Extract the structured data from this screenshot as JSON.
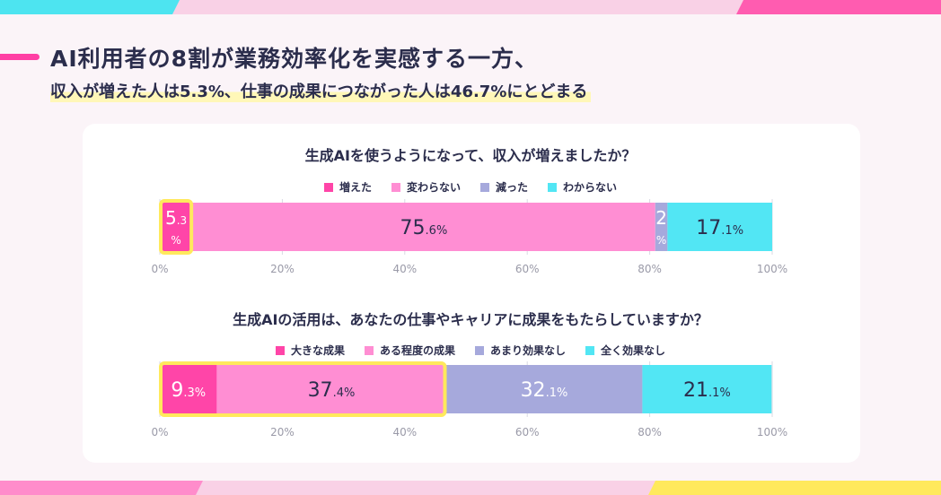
{
  "heading": {
    "line1": "AI利用者の8割が業務効率化を実感する一方、",
    "line2": "収入が増えた人は5.3%、仕事の成果につながった人は46.7%にとどまる"
  },
  "decor_colors": {
    "top": [
      "#4de4f0",
      "#f9d1e6",
      "#f9d1e6",
      "#ff5cb0"
    ],
    "bottom": [
      "#ff8ccb",
      "#f9d1e6",
      "#ffe95c"
    ]
  },
  "chart_data": [
    {
      "type": "bar",
      "orientation": "horizontal-stacked",
      "title": "生成AIを使うようになって、収入が増えましたか？",
      "categories": [
        "増えた",
        "変わらない",
        "減った",
        "わからない"
      ],
      "values": [
        5.3,
        75.6,
        2.0,
        17.1
      ],
      "value_labels": [
        {
          "main": "5",
          "decimal": ".3",
          "pct": "%"
        },
        {
          "main": "75",
          "decimal": ".6",
          "pct": "%"
        },
        {
          "main": "2",
          "decimal": "",
          "pct": "%"
        },
        {
          "main": "17",
          "decimal": ".1",
          "pct": "%"
        }
      ],
      "colors": [
        "#ff45a8",
        "#ff8ed3",
        "#a6a9dc",
        "#52e6f4"
      ],
      "highlight": [
        0
      ],
      "xlim": [
        0,
        100
      ],
      "xticks": [
        "0%",
        "20%",
        "40%",
        "60%",
        "80%",
        "100%"
      ],
      "grid": true
    },
    {
      "type": "bar",
      "orientation": "horizontal-stacked",
      "title": "生成AIの活用は、あなたの仕事やキャリアに成果をもたらしていますか？",
      "categories": [
        "大きな成果",
        "ある程度の成果",
        "あまり効果なし",
        "全く効果なし"
      ],
      "values": [
        9.3,
        37.4,
        32.1,
        21.1
      ],
      "value_labels": [
        {
          "main": "9",
          "decimal": ".3",
          "pct": "%"
        },
        {
          "main": "37",
          "decimal": ".4",
          "pct": "%"
        },
        {
          "main": "32",
          "decimal": ".1",
          "pct": "%"
        },
        {
          "main": "21",
          "decimal": ".1",
          "pct": "%"
        }
      ],
      "colors": [
        "#ff45a8",
        "#ff8ed3",
        "#a6a9dc",
        "#52e6f4"
      ],
      "highlight": [
        0,
        1
      ],
      "highlight_color": "#ffe95c",
      "xlim": [
        0,
        100
      ],
      "xticks": [
        "0%",
        "20%",
        "40%",
        "60%",
        "80%",
        "100%"
      ],
      "grid": true
    }
  ]
}
